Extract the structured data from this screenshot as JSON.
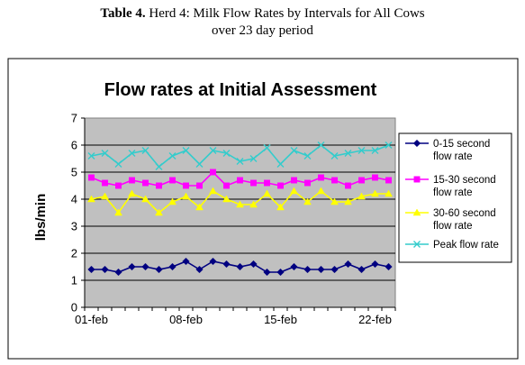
{
  "header": {
    "table_label": "Table 4.",
    "title_line1": "Herd 4: Milk Flow Rates by Intervals for All Cows",
    "title_line2": "over 23 day period"
  },
  "chart_data": {
    "type": "line",
    "title": "Flow rates at Initial Assessment",
    "xlabel": "",
    "ylabel": "lbs/min",
    "x": [
      "01-feb",
      "02-feb",
      "03-feb",
      "04-feb",
      "05-feb",
      "06-feb",
      "07-feb",
      "08-feb",
      "09-feb",
      "10-feb",
      "11-feb",
      "12-feb",
      "13-feb",
      "14-feb",
      "15-feb",
      "16-feb",
      "17-feb",
      "18-feb",
      "19-feb",
      "20-feb",
      "21-feb",
      "22-feb",
      "23-feb"
    ],
    "x_tick_labels": [
      "01-feb",
      "08-feb",
      "15-feb",
      "22-feb"
    ],
    "ylim": [
      0,
      7
    ],
    "yticks": [
      0,
      1,
      2,
      3,
      4,
      5,
      6,
      7
    ],
    "grid": "horizontal",
    "plot_background": "#c0c0c0",
    "legend_position": "right",
    "series": [
      {
        "name": "0-15 second flow rate",
        "legend_lines": [
          "0-15 second",
          "flow rate"
        ],
        "color": "#000080",
        "marker": "diamond",
        "values": [
          1.4,
          1.4,
          1.3,
          1.5,
          1.5,
          1.4,
          1.5,
          1.7,
          1.4,
          1.7,
          1.6,
          1.5,
          1.6,
          1.3,
          1.3,
          1.5,
          1.4,
          1.4,
          1.4,
          1.6,
          1.4,
          1.6,
          1.5
        ]
      },
      {
        "name": "15-30 second flow rate",
        "legend_lines": [
          "15-30 second",
          "flow rate"
        ],
        "color": "#ff00ff",
        "marker": "square",
        "values": [
          4.8,
          4.6,
          4.5,
          4.7,
          4.6,
          4.5,
          4.7,
          4.5,
          4.5,
          5.0,
          4.5,
          4.7,
          4.6,
          4.6,
          4.5,
          4.7,
          4.6,
          4.8,
          4.7,
          4.5,
          4.7,
          4.8,
          4.7
        ]
      },
      {
        "name": "30-60 second flow rate",
        "legend_lines": [
          "30-60 second",
          "flow rate"
        ],
        "color": "#ffff00",
        "marker": "triangle",
        "values": [
          4.0,
          4.1,
          3.5,
          4.2,
          4.0,
          3.5,
          3.9,
          4.1,
          3.7,
          4.3,
          4.0,
          3.8,
          3.8,
          4.2,
          3.7,
          4.3,
          3.9,
          4.3,
          3.9,
          3.9,
          4.1,
          4.2,
          4.2
        ]
      },
      {
        "name": "Peak flow rate",
        "legend_lines": [
          "Peak flow rate"
        ],
        "color": "#33cccc",
        "marker": "x",
        "values": [
          5.6,
          5.7,
          5.3,
          5.7,
          5.8,
          5.2,
          5.6,
          5.8,
          5.3,
          5.8,
          5.7,
          5.4,
          5.5,
          5.9,
          5.3,
          5.8,
          5.6,
          6.0,
          5.6,
          5.7,
          5.8,
          5.8,
          6.0
        ]
      }
    ]
  }
}
